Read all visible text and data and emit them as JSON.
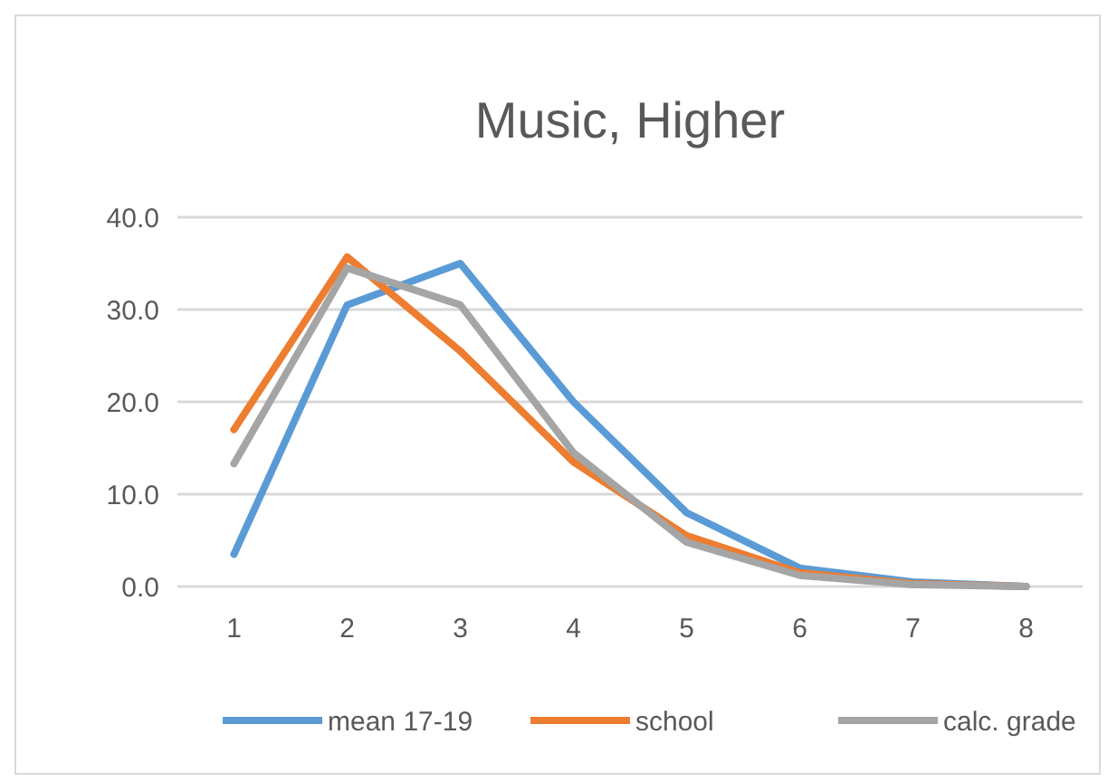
{
  "chart_data": {
    "type": "line",
    "title": "Music, Higher",
    "categories": [
      "1",
      "2",
      "3",
      "4",
      "5",
      "6",
      "7",
      "8"
    ],
    "series": [
      {
        "name": "mean 17-19",
        "color": "#5b9bd5",
        "values": [
          3.5,
          30.5,
          35,
          20,
          8,
          2,
          0.5,
          0
        ]
      },
      {
        "name": "school",
        "color": "#ed7d31",
        "values": [
          17,
          35.7,
          25.5,
          13.5,
          5.5,
          1.5,
          0.3,
          0
        ]
      },
      {
        "name": "calc. grade",
        "color": "#a5a5a5",
        "values": [
          13.3,
          34.5,
          30.5,
          14.5,
          4.8,
          1.2,
          0.2,
          0
        ]
      }
    ],
    "ylim": [
      0,
      40
    ],
    "yticks": [
      {
        "value": 0,
        "label": "0.0"
      },
      {
        "value": 10,
        "label": "10.0"
      },
      {
        "value": 20,
        "label": "20.0"
      },
      {
        "value": 30,
        "label": "30.0"
      },
      {
        "value": 40,
        "label": "40.0"
      }
    ],
    "grid": "y",
    "legend": "bottom",
    "marker": "none",
    "line_style": "solid"
  }
}
